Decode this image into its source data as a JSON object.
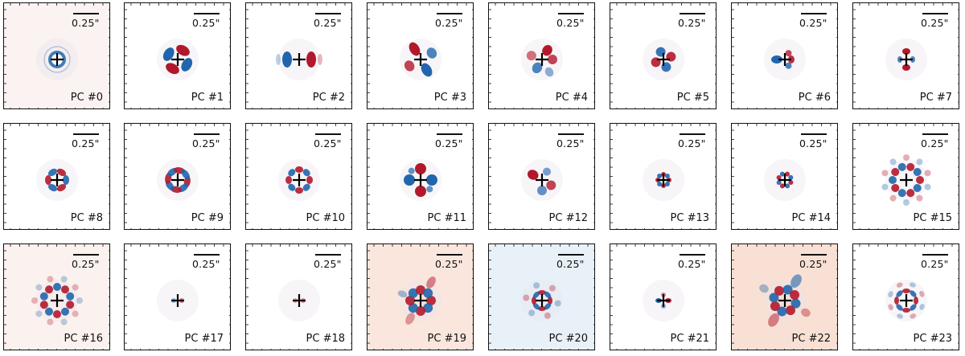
{
  "figure": {
    "panels": [
      {
        "label": "PC #0",
        "scale": "0.25\""
      },
      {
        "label": "PC #1",
        "scale": "0.25\""
      },
      {
        "label": "PC #2",
        "scale": "0.25\""
      },
      {
        "label": "PC #3",
        "scale": "0.25\""
      },
      {
        "label": "PC #4",
        "scale": "0.25\""
      },
      {
        "label": "PC #5",
        "scale": "0.25\""
      },
      {
        "label": "PC #6",
        "scale": "0.25\""
      },
      {
        "label": "PC #7",
        "scale": "0.25\""
      },
      {
        "label": "PC #8",
        "scale": "0.25\""
      },
      {
        "label": "PC #9",
        "scale": "0.25\""
      },
      {
        "label": "PC #10",
        "scale": "0.25\""
      },
      {
        "label": "PC #11",
        "scale": "0.25\""
      },
      {
        "label": "PC #12",
        "scale": "0.25\""
      },
      {
        "label": "PC #13",
        "scale": "0.25\""
      },
      {
        "label": "PC #14",
        "scale": "0.25\""
      },
      {
        "label": "PC #15",
        "scale": "0.25\""
      },
      {
        "label": "PC #16",
        "scale": "0.25\""
      },
      {
        "label": "PC #17",
        "scale": "0.25\""
      },
      {
        "label": "PC #18",
        "scale": "0.25\""
      },
      {
        "label": "PC #19",
        "scale": "0.25\""
      },
      {
        "label": "PC #20",
        "scale": "0.25\""
      },
      {
        "label": "PC #21",
        "scale": "0.25\""
      },
      {
        "label": "PC #22",
        "scale": "0.25\""
      },
      {
        "label": "PC #23",
        "scale": "0.25\""
      }
    ],
    "colors": {
      "positive": "#b2182b",
      "negative": "#2166ac",
      "frame": "#111111",
      "marker": "#000000"
    }
  }
}
